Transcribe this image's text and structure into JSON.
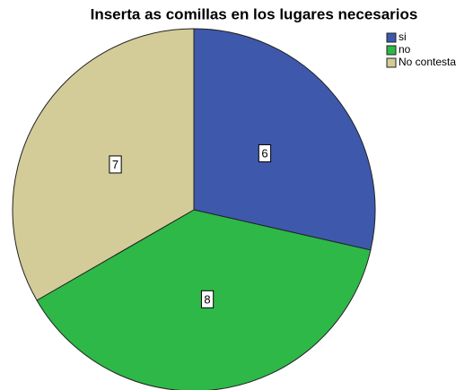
{
  "chart_data": {
    "type": "pie",
    "title": "Inserta as comillas en los lugares necesarios",
    "categories": [
      "si",
      "no",
      "No contesta"
    ],
    "values": [
      6,
      8,
      7
    ],
    "colors": [
      "#3e58ac",
      "#2eb848",
      "#d3cc98"
    ],
    "legend": "top-right"
  }
}
